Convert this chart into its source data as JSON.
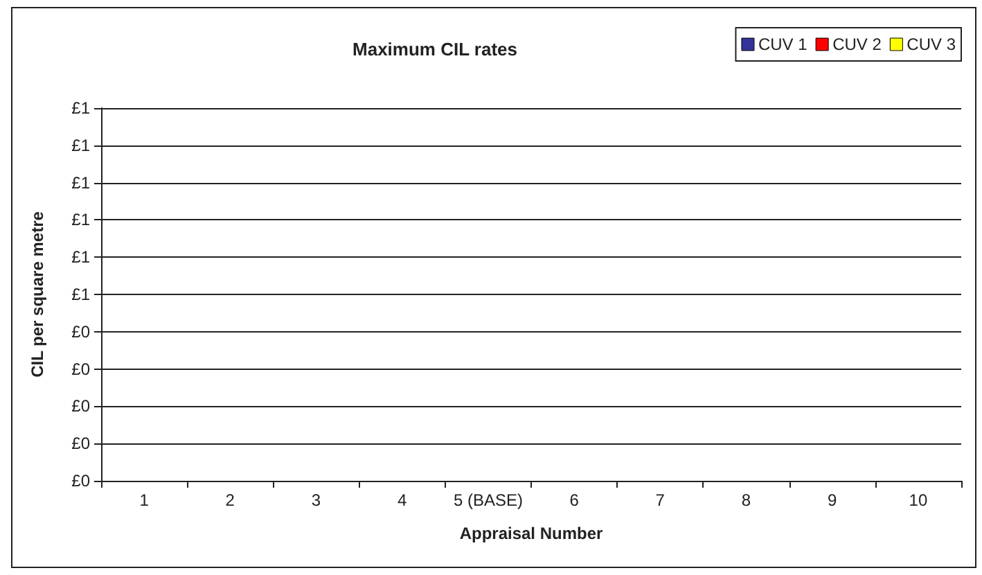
{
  "chart_data": {
    "type": "bar",
    "title": "Maximum CIL rates",
    "xlabel": "Appraisal Number",
    "ylabel": "CIL per square metre",
    "categories": [
      "1",
      "2",
      "3",
      "4",
      "5 (BASE)",
      "6",
      "7",
      "8",
      "9",
      "10"
    ],
    "series": [
      {
        "name": "CUV 1",
        "color": "#333399",
        "values": [
          0,
          0,
          0,
          0,
          0,
          0,
          0,
          0,
          0,
          0
        ]
      },
      {
        "name": "CUV 2",
        "color": "#ff0000",
        "values": [
          0,
          0,
          0,
          0,
          0,
          0,
          0,
          0,
          0,
          0
        ]
      },
      {
        "name": "CUV 3",
        "color": "#ffff00",
        "values": [
          0,
          0,
          0,
          0,
          0,
          0,
          0,
          0,
          0,
          0
        ]
      }
    ],
    "ylim": [
      0,
      1
    ],
    "yticks": [
      {
        "value": 0,
        "label": "£0"
      },
      {
        "value": 0.1,
        "label": "£0"
      },
      {
        "value": 0.2,
        "label": "£0"
      },
      {
        "value": 0.3,
        "label": "£0"
      },
      {
        "value": 0.4,
        "label": "£0"
      },
      {
        "value": 0.5,
        "label": "£1"
      },
      {
        "value": 0.6,
        "label": "£1"
      },
      {
        "value": 0.7,
        "label": "£1"
      },
      {
        "value": 0.8,
        "label": "£1"
      },
      {
        "value": 0.9,
        "label": "£1"
      },
      {
        "value": 1,
        "label": "£1"
      }
    ],
    "grid": "y",
    "legend": "top right"
  }
}
